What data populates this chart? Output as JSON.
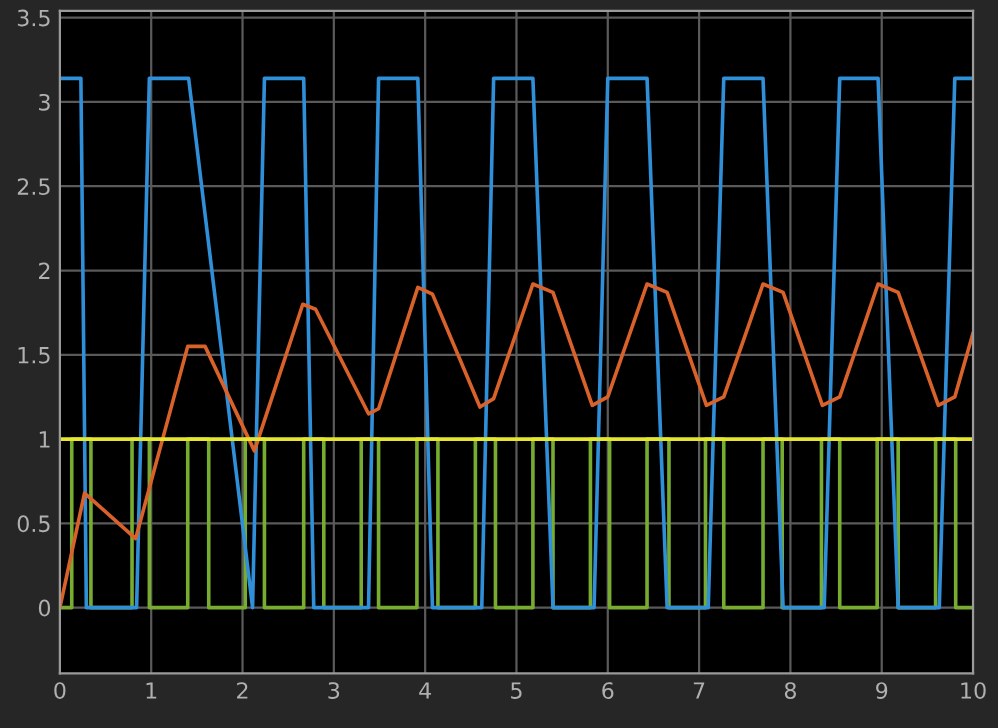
{
  "chart_data": {
    "type": "line",
    "xlim": [
      0,
      10
    ],
    "ylim": [
      -0.39,
      3.54
    ],
    "xticks": [
      0,
      1,
      2,
      3,
      4,
      5,
      6,
      7,
      8,
      9,
      10
    ],
    "yticks": [
      0,
      0.5,
      1,
      1.5,
      2,
      2.5,
      3,
      3.5
    ],
    "grid": true,
    "series": [
      {
        "type": "step",
        "color": "#77ac30",
        "x": [
          0,
          0.13,
          0.34,
          0.79,
          0.98,
          1.4,
          1.63,
          2.03,
          2.24,
          2.67,
          2.89,
          3.3,
          3.49,
          3.91,
          4.14,
          4.55,
          4.77,
          5.18,
          5.4,
          5.81,
          6.02,
          6.43,
          6.67,
          7.07,
          7.27,
          7.7,
          7.91,
          8.34,
          8.54,
          8.95,
          9.18,
          9.59,
          9.81,
          10
        ],
        "values": [
          0,
          1,
          0,
          1,
          0,
          1,
          0,
          1,
          0,
          1,
          0,
          1,
          0,
          1,
          0,
          1,
          0,
          1,
          0,
          1,
          0,
          1,
          0,
          1,
          0,
          1,
          0,
          1,
          0,
          1,
          0,
          1,
          0,
          0
        ]
      },
      {
        "color": "#2f8fd8",
        "x": [
          0,
          0.23,
          0.29,
          0.84,
          0.98,
          1.41,
          2.11,
          2.24,
          2.67,
          2.78,
          3.38,
          3.49,
          3.92,
          4.08,
          4.62,
          4.75,
          5.18,
          5.4,
          5.85,
          6.0,
          6.43,
          6.65,
          7.1,
          7.27,
          7.7,
          7.92,
          8.37,
          8.54,
          8.96,
          9.18,
          9.63,
          9.8,
          10
        ],
        "values": [
          3.14,
          3.14,
          0,
          0,
          3.14,
          3.14,
          0,
          3.14,
          3.14,
          0,
          0,
          3.14,
          3.14,
          0,
          0,
          3.14,
          3.14,
          0,
          0,
          3.14,
          3.14,
          0,
          0,
          3.14,
          3.14,
          0,
          0,
          3.14,
          3.14,
          0,
          0,
          3.14,
          3.14
        ]
      },
      {
        "color": "#d9622b",
        "x": [
          0,
          0.27,
          0.83,
          1.4,
          1.59,
          2.13,
          2.66,
          2.8,
          3.38,
          3.49,
          3.92,
          4.08,
          4.6,
          4.75,
          5.18,
          5.4,
          5.83,
          6.0,
          6.43,
          6.65,
          7.08,
          7.27,
          7.7,
          7.92,
          8.35,
          8.54,
          8.96,
          9.18,
          9.62,
          9.8,
          10
        ],
        "values": [
          0,
          0.68,
          0.41,
          1.55,
          1.55,
          0.93,
          1.8,
          1.77,
          1.15,
          1.18,
          1.9,
          1.86,
          1.19,
          1.24,
          1.92,
          1.87,
          1.2,
          1.25,
          1.92,
          1.87,
          1.2,
          1.25,
          1.92,
          1.87,
          1.2,
          1.25,
          1.92,
          1.87,
          1.2,
          1.25,
          1.63
        ]
      },
      {
        "color": "#e6e62e",
        "x": [
          0,
          10
        ],
        "values": [
          1,
          1
        ]
      }
    ]
  }
}
